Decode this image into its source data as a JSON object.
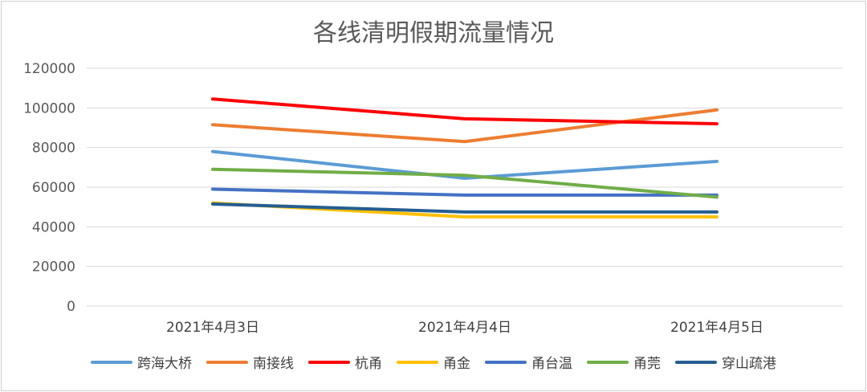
{
  "chart_data": {
    "type": "line",
    "title": "各线清明假期流量情况",
    "xlabel": "",
    "ylabel": "",
    "categories": [
      "2021年4月3日",
      "2021年4月4日",
      "2021年4月5日"
    ],
    "ylim": [
      0,
      120000
    ],
    "yticks": [
      0,
      20000,
      40000,
      60000,
      80000,
      100000,
      120000
    ],
    "grid": true,
    "legend_position": "bottom",
    "series": [
      {
        "name": "跨海大桥",
        "color": "#5b9bd5",
        "values": [
          78000,
          64500,
          73000
        ]
      },
      {
        "name": "南接线",
        "color": "#ed7d31",
        "values": [
          91500,
          83000,
          99000
        ]
      },
      {
        "name": "杭甬",
        "color": "#ff0000",
        "values": [
          104500,
          94500,
          92000
        ]
      },
      {
        "name": "甬金",
        "color": "#ffc000",
        "values": [
          52000,
          45000,
          45000
        ]
      },
      {
        "name": "甬台温",
        "color": "#4472c4",
        "values": [
          59000,
          56000,
          56000
        ]
      },
      {
        "name": "甬莞",
        "color": "#70ad47",
        "values": [
          69000,
          66000,
          55000
        ]
      },
      {
        "name": "穿山疏港",
        "color": "#255e91",
        "values": [
          51500,
          47500,
          47500
        ]
      }
    ]
  }
}
